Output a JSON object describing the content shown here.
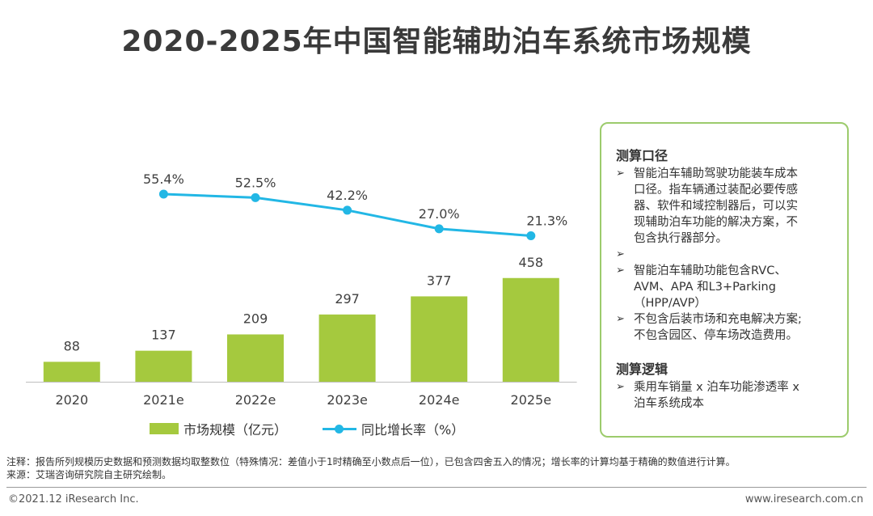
{
  "title": "2020-2025年中国智能辅助泊车系统市场规模",
  "chart_data": {
    "type": "bar",
    "categories": [
      "2020",
      "2021e",
      "2022e",
      "2023e",
      "2024e",
      "2025e"
    ],
    "series": [
      {
        "name": "市场规模（亿元）",
        "type": "bar",
        "values": [
          88,
          137,
          209,
          297,
          377,
          458
        ],
        "color": "#A5C93E"
      },
      {
        "name": "同比增长率（%）",
        "type": "line",
        "values": [
          null,
          55.4,
          52.5,
          42.2,
          27.0,
          21.3
        ],
        "labels": [
          "",
          "55.4%",
          "52.5%",
          "42.2%",
          "27.0%",
          "21.3%"
        ],
        "color": "#22B7E5"
      }
    ],
    "grid": false,
    "legend": "bottom"
  },
  "legend": {
    "bar_label": "市场规模（亿元）",
    "line_label": "同比增长率（%）"
  },
  "panel": {
    "section1_title": "测算口径",
    "section1_items": [
      [
        "智能泊车辅助驾驶功能装车成本",
        "口径。指车辆通过装配必要传感",
        "器、软件和域控制器后，可以实",
        "现辅助泊车功能的解决方案，不",
        "包含执行器部分。"
      ],
      [
        "智能泊车辅助功能包含RVC、",
        "AVM、APA 和L3+Parking",
        "（HPP/AVP）"
      ],
      [
        "不包含后装市场和充电解决方案;",
        "不包含园区、停车场改造费用。"
      ]
    ],
    "section2_title": "测算逻辑",
    "section2_items": [
      [
        "乘用车销量 x 泊车功能渗透率 x",
        "泊车系统成本"
      ]
    ]
  },
  "notes": {
    "line1": "注释：报告所列规模历史数据和预测数据均取整数位（特殊情况：差值小于1时精确至小数点后一位），已包含四舍五入的情况；增长率的计算均基于精确的数值进行计算。",
    "line2": "来源：艾瑞咨询研究院自主研究绘制。"
  },
  "footer": {
    "copyright": "©2021.12 iResearch Inc.",
    "website": "www.iresearch.com.cn"
  }
}
